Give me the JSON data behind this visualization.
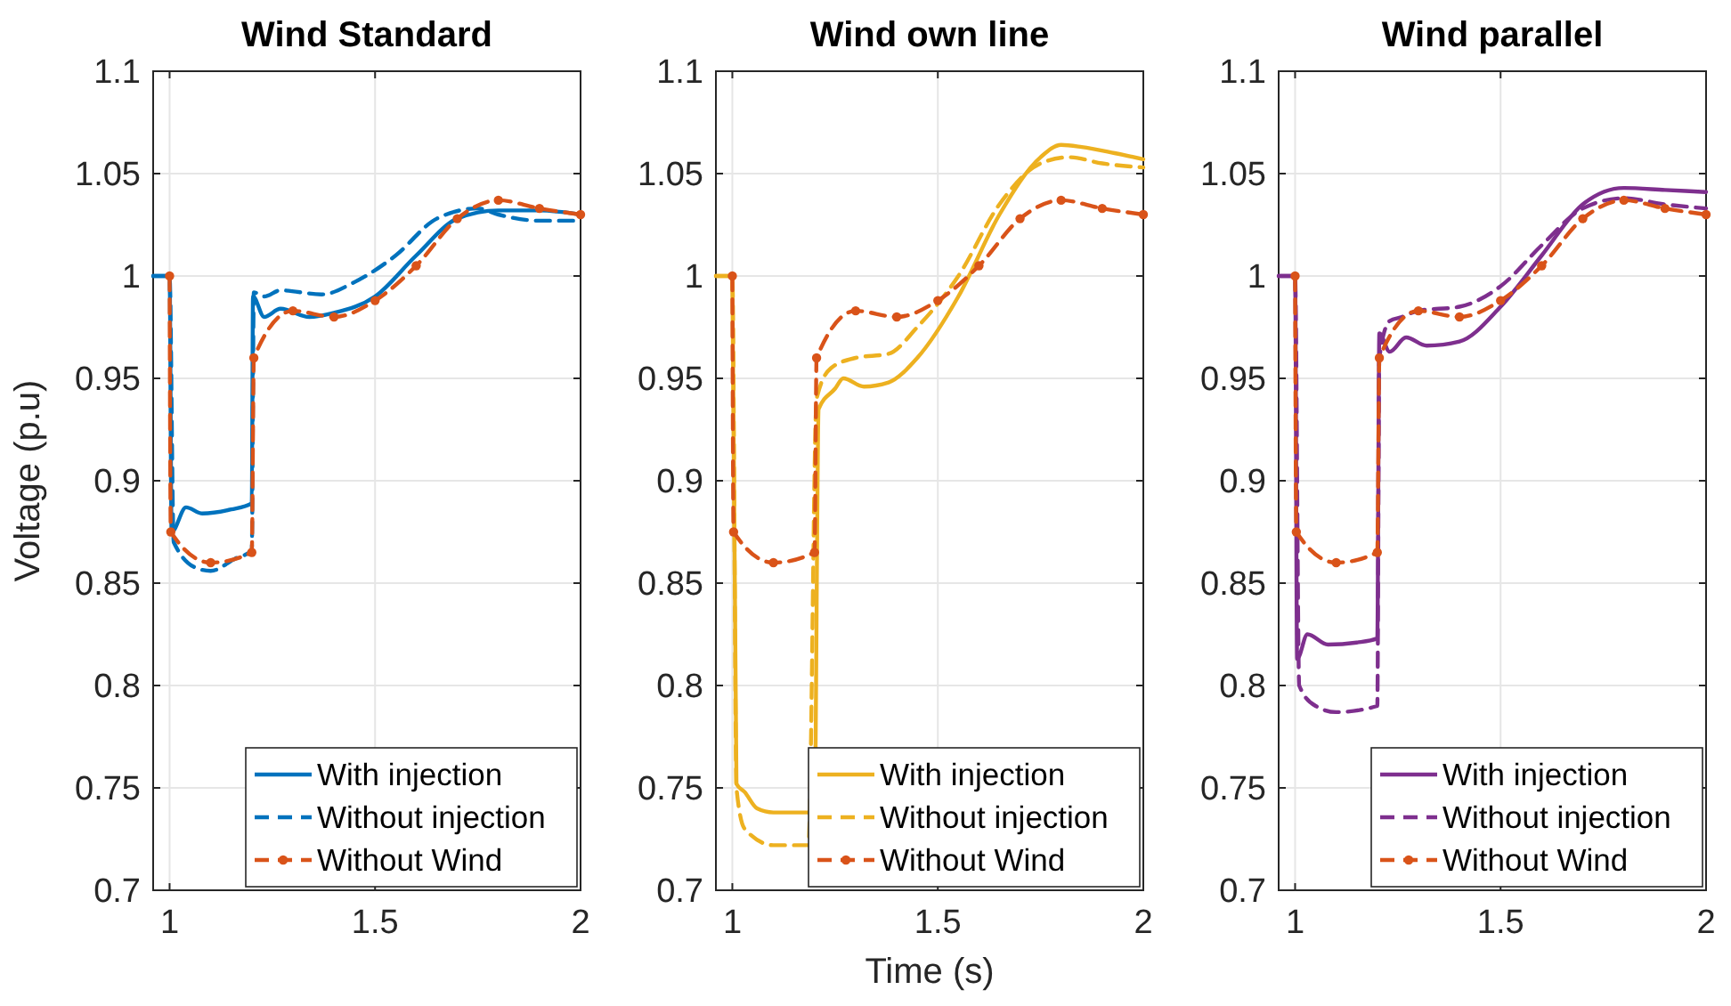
{
  "chart_data": [
    {
      "type": "line",
      "title": "Wind Standard",
      "ylabel": "Voltage (p.u)",
      "xlim": [
        0.96,
        2
      ],
      "xticks": [
        1,
        1.5,
        2
      ],
      "ylim": [
        0.7,
        1.1
      ],
      "yticks": [
        0.7,
        0.75,
        0.8,
        0.85,
        0.9,
        0.95,
        1,
        1.05,
        1.1
      ],
      "grid": true,
      "legend": "bottom right",
      "series": [
        {
          "name": "With injection",
          "color": "#0072bd",
          "line_style": "solid",
          "marker": "none",
          "x": [
            0.96,
            1.0,
            1.005,
            1.04,
            1.08,
            1.15,
            1.2,
            1.203,
            1.23,
            1.27,
            1.34,
            1.4,
            1.5,
            1.6,
            1.7,
            1.8,
            1.9,
            2.0
          ],
          "values": [
            1,
            1,
            0.875,
            0.887,
            0.884,
            0.886,
            0.889,
            0.99,
            0.98,
            0.984,
            0.98,
            0.982,
            0.99,
            1.01,
            1.028,
            1.032,
            1.032,
            1.03
          ]
        },
        {
          "name": "Without injection",
          "color": "#0072bd",
          "line_style": "dashed",
          "marker": "none",
          "x": [
            0.96,
            1.0,
            1.01,
            1.07,
            1.1,
            1.16,
            1.2,
            1.205,
            1.23,
            1.27,
            1.37,
            1.45,
            1.55,
            1.65,
            1.75,
            1.8,
            1.9,
            2.0
          ],
          "values": [
            1,
            1,
            0.87,
            0.857,
            0.856,
            0.862,
            0.866,
            0.992,
            0.99,
            0.993,
            0.991,
            0.997,
            1.01,
            1.028,
            1.033,
            1.03,
            1.027,
            1.027
          ]
        },
        {
          "name": "Without Wind",
          "color": "#d95319",
          "line_style": "dashed",
          "marker": "circle",
          "x": [
            1.0,
            1.003,
            1.1,
            1.2,
            1.205,
            1.3,
            1.4,
            1.5,
            1.6,
            1.7,
            1.8,
            1.9,
            2.0
          ],
          "values": [
            1,
            0.875,
            0.86,
            0.865,
            0.96,
            0.983,
            0.98,
            0.988,
            1.005,
            1.028,
            1.037,
            1.033,
            1.03
          ]
        }
      ]
    },
    {
      "type": "line",
      "title": "Wind own line",
      "xlabel": "Time (s)",
      "xlim": [
        0.96,
        2
      ],
      "xticks": [
        1,
        1.5,
        2
      ],
      "ylim": [
        0.7,
        1.1
      ],
      "yticks": [
        0.7,
        0.75,
        0.8,
        0.85,
        0.9,
        0.95,
        1,
        1.05,
        1.1
      ],
      "grid": true,
      "legend": "bottom right",
      "series": [
        {
          "name": "With injection",
          "color": "#edb120",
          "line_style": "solid",
          "marker": "none",
          "x": [
            0.96,
            1.0,
            1.01,
            1.03,
            1.06,
            1.1,
            1.2,
            1.21,
            1.25,
            1.27,
            1.32,
            1.38,
            1.45,
            1.55,
            1.65,
            1.75,
            1.8,
            1.85,
            1.93,
            2.0
          ],
          "values": [
            1,
            1,
            0.752,
            0.748,
            0.74,
            0.738,
            0.738,
            0.935,
            0.945,
            0.95,
            0.946,
            0.948,
            0.96,
            0.99,
            1.03,
            1.058,
            1.064,
            1.063,
            1.06,
            1.057
          ]
        },
        {
          "name": "Without injection",
          "color": "#edb120",
          "line_style": "dashed",
          "marker": "none",
          "x": [
            0.96,
            1.0,
            1.01,
            1.03,
            1.1,
            1.185,
            1.205,
            1.24,
            1.3,
            1.38,
            1.45,
            1.55,
            1.65,
            1.75,
            1.82,
            1.9,
            2.0
          ],
          "values": [
            1,
            1,
            0.75,
            0.73,
            0.722,
            0.722,
            0.94,
            0.955,
            0.96,
            0.962,
            0.975,
            1.0,
            1.035,
            1.055,
            1.058,
            1.055,
            1.053
          ]
        },
        {
          "name": "Without Wind",
          "color": "#d95319",
          "line_style": "dashed",
          "marker": "circle",
          "x": [
            1.0,
            1.003,
            1.1,
            1.2,
            1.205,
            1.3,
            1.4,
            1.5,
            1.6,
            1.7,
            1.8,
            1.9,
            2.0
          ],
          "values": [
            1,
            0.875,
            0.86,
            0.865,
            0.96,
            0.983,
            0.98,
            0.988,
            1.005,
            1.028,
            1.037,
            1.033,
            1.03
          ]
        }
      ]
    },
    {
      "type": "line",
      "title": "Wind parallel",
      "xlim": [
        0.96,
        2
      ],
      "xticks": [
        1,
        1.5,
        2
      ],
      "ylim": [
        0.7,
        1.1
      ],
      "yticks": [
        0.7,
        0.75,
        0.8,
        0.85,
        0.9,
        0.95,
        1,
        1.05,
        1.1
      ],
      "grid": true,
      "legend": "bottom right",
      "series": [
        {
          "name": "With injection",
          "color": "#7e2f8e",
          "line_style": "solid",
          "marker": "none",
          "x": [
            0.96,
            1.0,
            1.005,
            1.03,
            1.08,
            1.15,
            1.2,
            1.205,
            1.23,
            1.27,
            1.32,
            1.4,
            1.5,
            1.6,
            1.7,
            1.8,
            1.9,
            2.0
          ],
          "values": [
            1,
            1,
            0.813,
            0.825,
            0.82,
            0.821,
            0.823,
            0.972,
            0.963,
            0.97,
            0.966,
            0.968,
            0.985,
            1.01,
            1.035,
            1.043,
            1.042,
            1.041
          ]
        },
        {
          "name": "Without injection",
          "color": "#7e2f8e",
          "line_style": "dashed",
          "marker": "none",
          "x": [
            0.96,
            1.0,
            1.01,
            1.05,
            1.1,
            1.2,
            1.205,
            1.23,
            1.26,
            1.3,
            1.4,
            1.5,
            1.6,
            1.7,
            1.8,
            1.9,
            2.0
          ],
          "values": [
            1,
            1,
            0.8,
            0.79,
            0.787,
            0.79,
            0.96,
            0.978,
            0.98,
            0.983,
            0.985,
            0.995,
            1.015,
            1.033,
            1.038,
            1.035,
            1.033
          ]
        },
        {
          "name": "Without Wind",
          "color": "#d95319",
          "line_style": "dashed",
          "marker": "circle",
          "x": [
            1.0,
            1.003,
            1.1,
            1.2,
            1.205,
            1.3,
            1.4,
            1.5,
            1.6,
            1.7,
            1.8,
            1.9,
            2.0
          ],
          "values": [
            1,
            0.875,
            0.86,
            0.865,
            0.96,
            0.983,
            0.98,
            0.988,
            1.005,
            1.028,
            1.037,
            1.033,
            1.03
          ]
        }
      ]
    }
  ]
}
